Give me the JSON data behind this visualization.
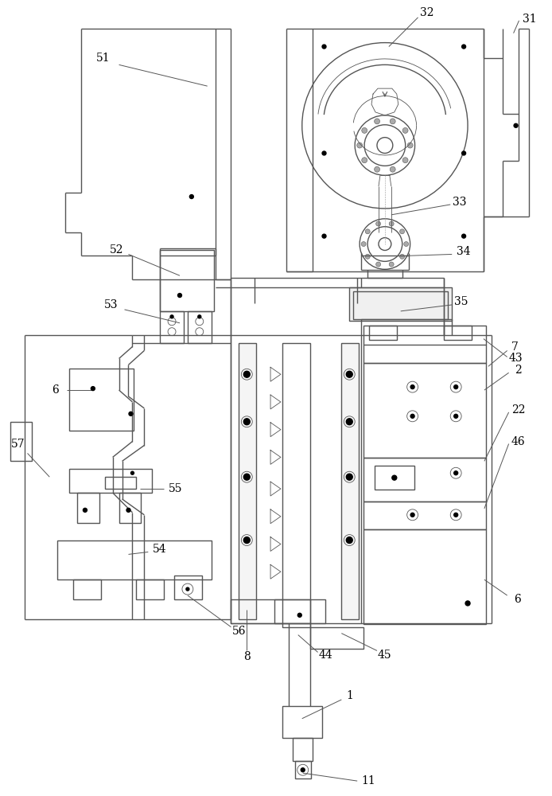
{
  "bg_color": "#ffffff",
  "lc": "#555555",
  "lw": 1.0,
  "tlw": 0.6,
  "fig_width": 6.94,
  "fig_height": 10.0
}
